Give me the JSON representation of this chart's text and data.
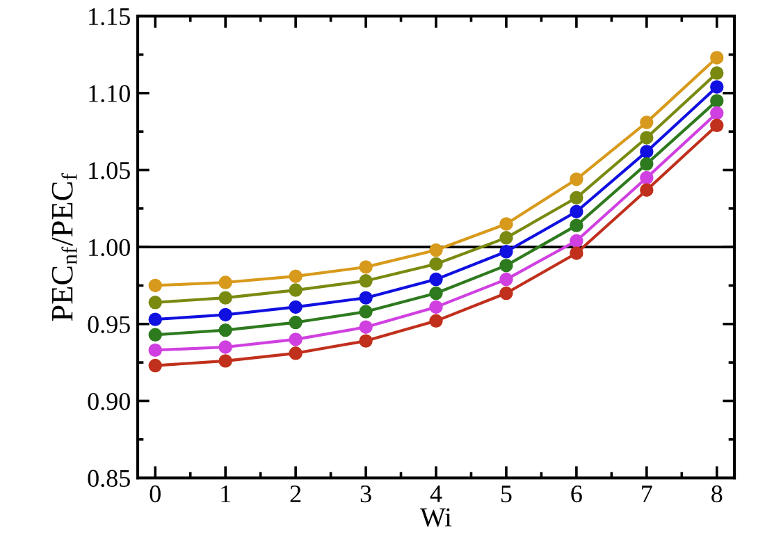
{
  "chart_data": {
    "type": "line",
    "xlabel": "Wi",
    "ylabel": "PEC$_{nf}$/PEC$_{f}$",
    "x": [
      0,
      1,
      2,
      3,
      4,
      5,
      6,
      7,
      8
    ],
    "series": [
      {
        "color": "#d89a1c",
        "values": [
          0.975,
          0.977,
          0.981,
          0.987,
          0.998,
          1.015,
          1.044,
          1.081,
          1.123
        ]
      },
      {
        "color": "#7a8a10",
        "values": [
          0.964,
          0.967,
          0.972,
          0.978,
          0.989,
          1.006,
          1.032,
          1.071,
          1.113
        ]
      },
      {
        "color": "#1010e0",
        "values": [
          0.953,
          0.956,
          0.961,
          0.967,
          0.979,
          0.997,
          1.023,
          1.062,
          1.104
        ]
      },
      {
        "color": "#2e7a1e",
        "values": [
          0.943,
          0.946,
          0.951,
          0.958,
          0.97,
          0.988,
          1.014,
          1.054,
          1.095
        ]
      },
      {
        "color": "#d040e0",
        "values": [
          0.933,
          0.935,
          0.94,
          0.948,
          0.961,
          0.979,
          1.004,
          1.045,
          1.087
        ]
      },
      {
        "color": "#c0301c",
        "values": [
          0.923,
          0.926,
          0.931,
          0.939,
          0.952,
          0.97,
          0.996,
          1.037,
          1.079
        ]
      }
    ],
    "xlim": [
      -0.25,
      8.25
    ],
    "xticks": [
      0,
      1,
      2,
      3,
      4,
      5,
      6,
      7,
      8
    ],
    "ylim": [
      0.85,
      1.15
    ],
    "yticks": [
      {
        "value": 0.85,
        "label": "0.85"
      },
      {
        "value": 0.9,
        "label": "0.90"
      },
      {
        "value": 0.95,
        "label": "0.95"
      },
      {
        "value": 1.0,
        "label": "1.00"
      },
      {
        "value": 1.05,
        "label": "1.05"
      },
      {
        "value": 1.1,
        "label": "1.10"
      },
      {
        "value": 1.15,
        "label": "1.15"
      }
    ],
    "ref_lines": [
      {
        "axis": "y",
        "value": 1.0,
        "color": "#000000",
        "line_style": "solid"
      }
    ],
    "marker": "circle",
    "line_style": "solid",
    "grid": false,
    "legend": false
  }
}
